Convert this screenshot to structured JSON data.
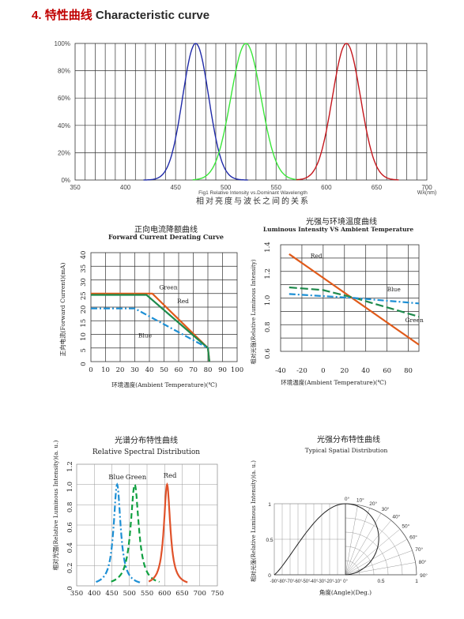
{
  "heading": {
    "number": "4.",
    "cn": "特性曲线",
    "en": "Characteristic curve"
  },
  "colors": {
    "blue": "#1f2aa8",
    "green": "#39e639",
    "red": "#c4161c",
    "orange": "#e05a1a",
    "dgreen": "#1e8a4c",
    "lblue": "#1d8fd4",
    "lgreen": "#10a040",
    "lred": "#e0522a"
  },
  "chart_data": [
    {
      "type": "line",
      "id": "spectrum",
      "title": "相对亮度与波长之间的关系",
      "subtitle": "Fig1 Relative Intensity vs.Dominant Wavelength",
      "xlabel": "Wλ(nm)",
      "x_ticks": [
        "350",
        "400",
        "450",
        "500",
        "550",
        "600",
        "650",
        "700"
      ],
      "y_ticks": [
        "0%",
        "20%",
        "40%",
        "60%",
        "80%",
        "100%"
      ],
      "xlim": [
        350,
        700
      ],
      "ylim": [
        0,
        100
      ],
      "series": [
        {
          "color": "#1f2aa8",
          "peak": 470,
          "sigma": 13,
          "start": 418,
          "end": 522
        },
        {
          "color": "#39e639",
          "peak": 520,
          "sigma": 15,
          "start": 467,
          "end": 573
        },
        {
          "color": "#c4161c",
          "peak": 620,
          "sigma": 14,
          "start": 570,
          "end": 672
        }
      ]
    },
    {
      "type": "line",
      "id": "derating",
      "title_cn": "正向电流降额曲线",
      "title_en": "Forward Current Derating Curve",
      "ylabel": "正向电流(Forward Current)(mA)",
      "xlabel": "环境温度(Ambient Temperature)(℃)",
      "x_ticks": [
        "0",
        "10",
        "20",
        "30",
        "40",
        "50",
        "60",
        "70",
        "80",
        "90",
        "100"
      ],
      "y_ticks": [
        "0",
        "5",
        "10",
        "15",
        "20",
        "25",
        "30",
        "35",
        "40"
      ],
      "xlim": [
        0,
        100
      ],
      "ylim": [
        0,
        40
      ],
      "series": [
        {
          "name": "Red",
          "color": "#e05a1a",
          "dash": "",
          "points": [
            [
              0,
              25
            ],
            [
              42,
              25
            ],
            [
              80,
              5
            ],
            [
              81,
              0
            ]
          ]
        },
        {
          "name": "Green",
          "color": "#1e8a4c",
          "dash": "",
          "points": [
            [
              0,
              24.5
            ],
            [
              38,
              24.5
            ],
            [
              80,
              5
            ],
            [
              81,
              0
            ]
          ]
        },
        {
          "name": "Blue",
          "color": "#1d8fd4",
          "dash": "8,3,2,3",
          "points": [
            [
              0,
              19.5
            ],
            [
              30,
              19.5
            ],
            [
              80,
              5
            ]
          ]
        }
      ]
    },
    {
      "type": "line",
      "id": "temperature",
      "title_cn": "光强与环境温度曲线",
      "title_en": "Luminous Intensity VS Ambient Temperature",
      "ylabel": "相对光强(Relative Luminous Intensity)",
      "xlabel": "环境温度(Ambient Temperature)(℃)",
      "x_ticks": [
        "-40",
        "-20",
        "0",
        "20",
        "40",
        "60",
        "80"
      ],
      "y_ticks": [
        "0.6",
        "0.8",
        "1.0",
        "1.2",
        "1.4"
      ],
      "xlim": [
        -40,
        90
      ],
      "ylim": [
        0.6,
        1.4
      ],
      "series": [
        {
          "name": "Red",
          "color": "#e05a1a",
          "dash": "",
          "points": [
            [
              -32,
              1.33
            ],
            [
              90,
              0.65
            ]
          ]
        },
        {
          "name": "Green",
          "color": "#1e8a4c",
          "dash": "10,4",
          "points": [
            [
              -32,
              1.08
            ],
            [
              0,
              1.06
            ],
            [
              30,
              1.0
            ],
            [
              90,
              0.86
            ]
          ]
        },
        {
          "name": "Blue",
          "color": "#1d8fd4",
          "dash": "8,3,2,3",
          "points": [
            [
              -32,
              1.03
            ],
            [
              30,
              1.0
            ],
            [
              90,
              0.96
            ]
          ]
        }
      ]
    },
    {
      "type": "line",
      "id": "relative_spectral",
      "title_cn": "光谱分布特性曲线",
      "title_en": "Relative Spectral Distribution",
      "ylabel": "相对光强(Relative Luminous Intensity)(a. u.)",
      "x_ticks": [
        "350",
        "400",
        "450",
        "500",
        "550",
        "600",
        "650",
        "700",
        "750"
      ],
      "y_ticks": [
        "0",
        "0.2",
        "0.4",
        "0.6",
        "0.8",
        "1.0",
        "1.2"
      ],
      "xlim": [
        350,
        750
      ],
      "ylim": [
        0,
        1.2
      ],
      "series": [
        {
          "name": "Blue",
          "color": "#1d8fd4",
          "dash": "8,3,2,3",
          "peak": 465,
          "hw": 12,
          "start": 405,
          "end": 530
        },
        {
          "name": "Green",
          "color": "#10a040",
          "dash": "7,4",
          "peak": 515,
          "hw": 14,
          "start": 448,
          "end": 585
        },
        {
          "name": "Red",
          "color": "#e0522a",
          "dash": "",
          "peak": 607,
          "hw": 11,
          "start": 555,
          "end": 665
        }
      ]
    },
    {
      "type": "polar",
      "id": "spatial",
      "title_cn": "光强分布特性曲线",
      "title_en": "Typical Spatial Distribution",
      "ylabel": "相对光强(Relative Luminous Intensity)(a. u.)",
      "xlabel": "角度(Angle)(Deg.)",
      "angle_ticks": [
        "-90°",
        "-80°",
        "-70°",
        "-60°",
        "-50°",
        "-40°",
        "-30°",
        "-20°",
        "-10°",
        "0°"
      ],
      "x_ticks": [
        "0",
        "0.5",
        "1"
      ],
      "y_ticks": [
        "0",
        "0.5",
        "1"
      ],
      "polar_labels": [
        "0°",
        "10°",
        "20°",
        "30°",
        "40°",
        "50°",
        "60°",
        "70°",
        "80°",
        "90°"
      ]
    }
  ]
}
